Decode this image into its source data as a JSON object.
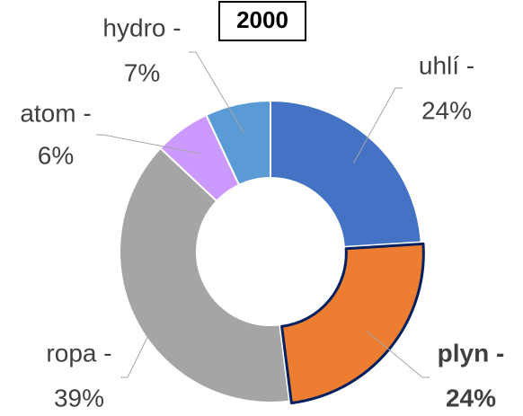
{
  "chart_data": {
    "type": "donut",
    "title": "2000",
    "categories": [
      "uhlí -",
      "plyn -",
      "ropa -",
      "atom -",
      "hydro -"
    ],
    "values": [
      24,
      24,
      39,
      6,
      7
    ],
    "value_labels": [
      "24%",
      "24%",
      "39%",
      "6%",
      "7%"
    ],
    "colors": [
      "#4472c4",
      "#ed7d31",
      "#a5a5a5",
      "#cc99ff",
      "#5b9bd5"
    ]
  }
}
